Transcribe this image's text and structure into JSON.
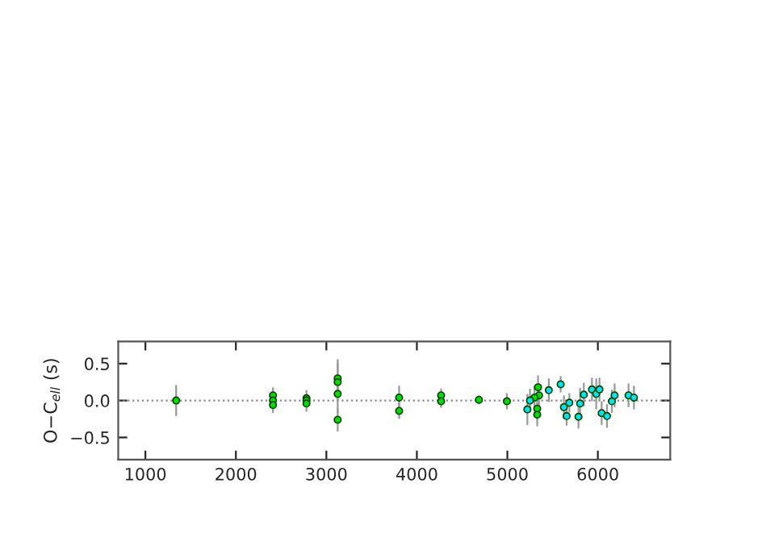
{
  "chart_data": {
    "type": "scatter",
    "ylabel": "O−C$_{ell}$ (s)",
    "xlim": [
      700,
      6800
    ],
    "ylim": [
      -0.8,
      0.8
    ],
    "xticks": [
      1000,
      2000,
      3000,
      4000,
      5000,
      6000
    ],
    "yticks": [
      {
        "value": 0.5,
        "label": "0.5"
      },
      {
        "value": 0,
        "label": "0.0"
      },
      {
        "value": -0.5,
        "label": "−0.5"
      }
    ],
    "grid": false,
    "legend": false,
    "marker": "circle",
    "ref_lines": [
      {
        "axis": "y",
        "value": 0,
        "color": "#888888",
        "line_style": "dotted"
      }
    ],
    "series": [
      {
        "color": "#00dd00",
        "x": [
          1340,
          2410,
          2410,
          2410,
          2780,
          2780,
          2780,
          3125,
          3125,
          3125,
          3125,
          3804,
          3804,
          4268,
          4268,
          4686,
          4995,
          5339,
          5350,
          5300,
          5330,
          5330
        ],
        "values": [
          0,
          0.07,
          0,
          -0.06,
          0.03,
          0,
          -0.04,
          0.3,
          0.25,
          0.09,
          -0.26,
          0.04,
          -0.14,
          0.07,
          -0.01,
          0.01,
          -0.01,
          0.18,
          0.07,
          0.04,
          -0.11,
          -0.19
        ],
        "errors": [
          0.2,
          0.1,
          null,
          0.1,
          0.1,
          null,
          0.1,
          0.25,
          0.25,
          0.25,
          0.15,
          0.15,
          0.1,
          0.08,
          0.08,
          0.05,
          0.1,
          0.15,
          0.15,
          0.15,
          0.15,
          0.15
        ]
      },
      {
        "color": "#00e5ee",
        "x": [
          5221,
          5250,
          5458,
          5589,
          5625,
          5685,
          5655,
          5786,
          5804,
          5845,
          5935,
          5982,
          6018,
          6042,
          6101,
          6155,
          6185,
          6339,
          6399
        ],
        "values": [
          -0.12,
          0,
          0.14,
          0.22,
          -0.09,
          -0.03,
          -0.21,
          -0.22,
          -0.04,
          0.08,
          0.15,
          0.09,
          0.15,
          -0.17,
          -0.21,
          -0.01,
          0.07,
          0.07,
          0.04
        ],
        "errors": [
          0.2,
          0.15,
          0.15,
          0.1,
          0.15,
          0.12,
          0.12,
          0.15,
          0.2,
          0.15,
          0.15,
          0.2,
          0.15,
          0.15,
          0.15,
          0.15,
          0.15,
          0.15,
          0.15
        ]
      }
    ]
  }
}
